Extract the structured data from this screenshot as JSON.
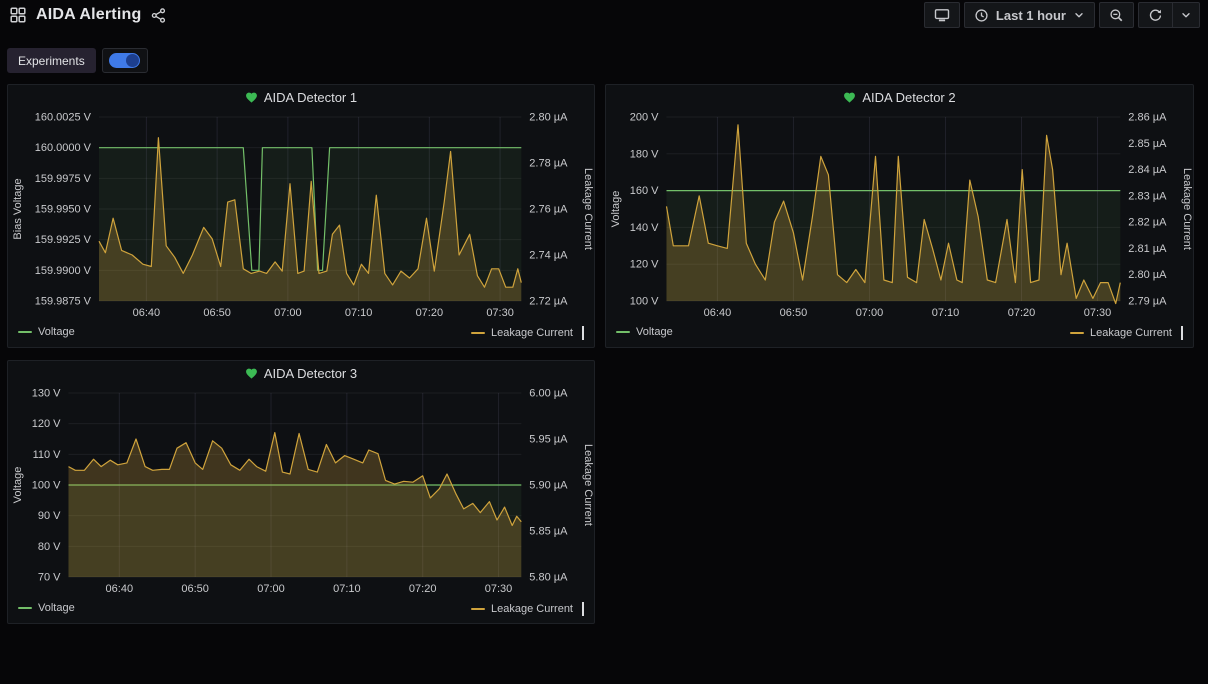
{
  "header": {
    "title": "AIDA Alerting",
    "time_range_label": "Last 1 hour"
  },
  "submenu": {
    "experiments_label": "Experiments",
    "experiments_toggle_on": true
  },
  "colors": {
    "voltage_green": "#73bf69",
    "current_yellow": "#cfa33c",
    "alert_ok_green": "#3cba54",
    "toggle_blue": "#3f7ae8",
    "axis_text": "#c9cacd",
    "grid_h": "rgba(201,209,217,0.08)",
    "grid_v": "rgba(168,158,212,0.12)"
  },
  "chart_data": [
    {
      "type": "line",
      "title": "AIDA Detector 1",
      "alert_state": "ok",
      "x_axis": {
        "min": 393.3,
        "max": 453,
        "ticks": [
          {
            "v": 400,
            "label": "06:40"
          },
          {
            "v": 410,
            "label": "06:50"
          },
          {
            "v": 420,
            "label": "07:00"
          },
          {
            "v": 430,
            "label": "07:10"
          },
          {
            "v": 440,
            "label": "07:20"
          },
          {
            "v": 450,
            "label": "07:30"
          }
        ]
      },
      "left_axis": {
        "label": "Bias Voltage",
        "min": 159.9875,
        "max": 160.0025,
        "ticks": [
          {
            "v": 160.0025,
            "label": "160.0025 V"
          },
          {
            "v": 160.0,
            "label": "160.0000 V"
          },
          {
            "v": 159.9975,
            "label": "159.9975 V"
          },
          {
            "v": 159.995,
            "label": "159.9950 V"
          },
          {
            "v": 159.9925,
            "label": "159.9925 V"
          },
          {
            "v": 159.99,
            "label": "159.9900 V"
          },
          {
            "v": 159.9875,
            "label": "159.9875 V"
          }
        ]
      },
      "right_axis": {
        "label": "Leakage Current",
        "min": 2.72,
        "max": 2.8,
        "ticks": [
          {
            "v": 2.8,
            "label": "2.80 µA"
          },
          {
            "v": 2.78,
            "label": "2.78 µA"
          },
          {
            "v": 2.76,
            "label": "2.76 µA"
          },
          {
            "v": 2.74,
            "label": "2.74 µA"
          },
          {
            "v": 2.72,
            "label": "2.72 µA"
          }
        ]
      },
      "series": [
        {
          "name": "Voltage",
          "axis": "left",
          "color": "#73bf69",
          "fill_opacity": 0.08,
          "points": [
            [
              393.3,
              160.0
            ],
            [
              413.7,
              160.0
            ],
            [
              414.9,
              159.99
            ],
            [
              415.9,
              159.99
            ],
            [
              416.4,
              160.0
            ],
            [
              423.4,
              160.0
            ],
            [
              424.2,
              159.99
            ],
            [
              424.9,
              159.99
            ],
            [
              425.9,
              160.0
            ],
            [
              453,
              160.0
            ]
          ]
        },
        {
          "name": "Leakage Current",
          "axis": "right",
          "color": "#cfa33c",
          "fill_opacity": 0.26,
          "points": [
            [
              393.3,
              2.746
            ],
            [
              394.2,
              2.741
            ],
            [
              395.3,
              2.756
            ],
            [
              396.5,
              2.742
            ],
            [
              398,
              2.74
            ],
            [
              399.5,
              2.736
            ],
            [
              400.7,
              2.735
            ],
            [
              401.7,
              2.791
            ],
            [
              402.8,
              2.744
            ],
            [
              404,
              2.739
            ],
            [
              405.2,
              2.732
            ],
            [
              406.5,
              2.74
            ],
            [
              408.1,
              2.752
            ],
            [
              409.3,
              2.747
            ],
            [
              410.5,
              2.735
            ],
            [
              411.5,
              2.763
            ],
            [
              412.5,
              2.764
            ],
            [
              413.7,
              2.734
            ],
            [
              414.8,
              2.732
            ],
            [
              416,
              2.733
            ],
            [
              417,
              2.732
            ],
            [
              418.2,
              2.737
            ],
            [
              419.2,
              2.733
            ],
            [
              420.3,
              2.771
            ],
            [
              421.4,
              2.732
            ],
            [
              422.3,
              2.733
            ],
            [
              423.3,
              2.772
            ],
            [
              424.4,
              2.732
            ],
            [
              425.5,
              2.733
            ],
            [
              426.3,
              2.749
            ],
            [
              427.3,
              2.753
            ],
            [
              428.3,
              2.732
            ],
            [
              429.3,
              2.727
            ],
            [
              430.4,
              2.736
            ],
            [
              431.4,
              2.732
            ],
            [
              432.5,
              2.766
            ],
            [
              433.7,
              2.732
            ],
            [
              434.8,
              2.727
            ],
            [
              436,
              2.733
            ],
            [
              437.2,
              2.73
            ],
            [
              438.4,
              2.734
            ],
            [
              439.6,
              2.756
            ],
            [
              440.7,
              2.733
            ],
            [
              442.1,
              2.763
            ],
            [
              443,
              2.785
            ],
            [
              444.2,
              2.74
            ],
            [
              445.7,
              2.749
            ],
            [
              446.8,
              2.731
            ],
            [
              447.8,
              2.726
            ],
            [
              448.8,
              2.734
            ],
            [
              449.8,
              2.734
            ],
            [
              450.8,
              2.726
            ],
            [
              451.8,
              2.726
            ],
            [
              452.5,
              2.734
            ],
            [
              453,
              2.728
            ]
          ]
        }
      ],
      "legend": [
        "Voltage",
        "Leakage Current"
      ]
    },
    {
      "type": "line",
      "title": "AIDA Detector 2",
      "alert_state": "ok",
      "x_axis": {
        "min": 393.3,
        "max": 453,
        "ticks": [
          {
            "v": 400,
            "label": "06:40"
          },
          {
            "v": 410,
            "label": "06:50"
          },
          {
            "v": 420,
            "label": "07:00"
          },
          {
            "v": 430,
            "label": "07:10"
          },
          {
            "v": 440,
            "label": "07:20"
          },
          {
            "v": 450,
            "label": "07:30"
          }
        ]
      },
      "left_axis": {
        "label": "Voltage",
        "min": 100,
        "max": 200,
        "ticks": [
          {
            "v": 200,
            "label": "200 V"
          },
          {
            "v": 180,
            "label": "180 V"
          },
          {
            "v": 160,
            "label": "160 V"
          },
          {
            "v": 140,
            "label": "140 V"
          },
          {
            "v": 120,
            "label": "120 V"
          },
          {
            "v": 100,
            "label": "100 V"
          }
        ]
      },
      "right_axis": {
        "label": "Leakage Current",
        "min": 2.79,
        "max": 2.86,
        "ticks": [
          {
            "v": 2.86,
            "label": "2.86 µA"
          },
          {
            "v": 2.85,
            "label": "2.85 µA"
          },
          {
            "v": 2.84,
            "label": "2.84 µA"
          },
          {
            "v": 2.83,
            "label": "2.83 µA"
          },
          {
            "v": 2.82,
            "label": "2.82 µA"
          },
          {
            "v": 2.81,
            "label": "2.81 µA"
          },
          {
            "v": 2.8,
            "label": "2.80 µA"
          },
          {
            "v": 2.79,
            "label": "2.79 µA"
          }
        ]
      },
      "series": [
        {
          "name": "Voltage",
          "axis": "left",
          "color": "#73bf69",
          "fill_opacity": 0.08,
          "points": [
            [
              393.3,
              160
            ],
            [
              453,
              160
            ]
          ]
        },
        {
          "name": "Leakage Current",
          "axis": "right",
          "color": "#cfa33c",
          "fill_opacity": 0.26,
          "points": [
            [
              393.3,
              2.826
            ],
            [
              394.2,
              2.811
            ],
            [
              395.2,
              2.811
            ],
            [
              396.2,
              2.811
            ],
            [
              397.6,
              2.83
            ],
            [
              398.8,
              2.812
            ],
            [
              400,
              2.811
            ],
            [
              401.3,
              2.81
            ],
            [
              402.7,
              2.857
            ],
            [
              403.8,
              2.812
            ],
            [
              405,
              2.804
            ],
            [
              406.3,
              2.798
            ],
            [
              407.5,
              2.82
            ],
            [
              408.7,
              2.828
            ],
            [
              410,
              2.816
            ],
            [
              411.2,
              2.798
            ],
            [
              412.5,
              2.822
            ],
            [
              413.6,
              2.845
            ],
            [
              414.6,
              2.838
            ],
            [
              415.8,
              2.8
            ],
            [
              417,
              2.797
            ],
            [
              418.2,
              2.802
            ],
            [
              419.4,
              2.797
            ],
            [
              420.8,
              2.845
            ],
            [
              421.9,
              2.798
            ],
            [
              423,
              2.797
            ],
            [
              423.8,
              2.845
            ],
            [
              425,
              2.799
            ],
            [
              426.2,
              2.797
            ],
            [
              427.2,
              2.821
            ],
            [
              428.3,
              2.81
            ],
            [
              429.4,
              2.798
            ],
            [
              430.4,
              2.812
            ],
            [
              431.5,
              2.798
            ],
            [
              432.2,
              2.797
            ],
            [
              433.2,
              2.836
            ],
            [
              434.3,
              2.822
            ],
            [
              435.5,
              2.798
            ],
            [
              436.6,
              2.797
            ],
            [
              438.1,
              2.821
            ],
            [
              439.2,
              2.797
            ],
            [
              440.1,
              2.84
            ],
            [
              441.2,
              2.797
            ],
            [
              442.3,
              2.798
            ],
            [
              443.3,
              2.853
            ],
            [
              444.1,
              2.84
            ],
            [
              445.2,
              2.8
            ],
            [
              446,
              2.812
            ],
            [
              447.2,
              2.791
            ],
            [
              448.2,
              2.798
            ],
            [
              449.4,
              2.791
            ],
            [
              450.4,
              2.797
            ],
            [
              451.4,
              2.797
            ],
            [
              452.4,
              2.789
            ],
            [
              453,
              2.797
            ]
          ]
        }
      ],
      "legend": [
        "Voltage",
        "Leakage Current"
      ]
    },
    {
      "type": "line",
      "title": "AIDA Detector 3",
      "alert_state": "ok",
      "x_axis": {
        "min": 393.3,
        "max": 453,
        "ticks": [
          {
            "v": 400,
            "label": "06:40"
          },
          {
            "v": 410,
            "label": "06:50"
          },
          {
            "v": 420,
            "label": "07:00"
          },
          {
            "v": 430,
            "label": "07:10"
          },
          {
            "v": 440,
            "label": "07:20"
          },
          {
            "v": 450,
            "label": "07:30"
          }
        ]
      },
      "left_axis": {
        "label": "Voltage",
        "min": 70,
        "max": 130,
        "ticks": [
          {
            "v": 130,
            "label": "130 V"
          },
          {
            "v": 120,
            "label": "120 V"
          },
          {
            "v": 110,
            "label": "110 V"
          },
          {
            "v": 100,
            "label": "100 V"
          },
          {
            "v": 90,
            "label": "90 V"
          },
          {
            "v": 80,
            "label": "80 V"
          },
          {
            "v": 70,
            "label": "70 V"
          }
        ]
      },
      "right_axis": {
        "label": "Leakage Current",
        "min": 5.8,
        "max": 6.0,
        "ticks": [
          {
            "v": 6.0,
            "label": "6.00 µA"
          },
          {
            "v": 5.95,
            "label": "5.95 µA"
          },
          {
            "v": 5.9,
            "label": "5.90 µA"
          },
          {
            "v": 5.85,
            "label": "5.85 µA"
          },
          {
            "v": 5.8,
            "label": "5.80 µA"
          }
        ]
      },
      "series": [
        {
          "name": "Voltage",
          "axis": "left",
          "color": "#73bf69",
          "fill_opacity": 0.08,
          "points": [
            [
              393.3,
              100
            ],
            [
              453,
              100
            ]
          ]
        },
        {
          "name": "Leakage Current",
          "axis": "right",
          "color": "#cfa33c",
          "fill_opacity": 0.26,
          "points": [
            [
              393.3,
              5.92
            ],
            [
              394.2,
              5.916
            ],
            [
              395.4,
              5.916
            ],
            [
              396.6,
              5.928
            ],
            [
              397.6,
              5.92
            ],
            [
              398.8,
              5.927
            ],
            [
              399.8,
              5.922
            ],
            [
              401,
              5.924
            ],
            [
              402.2,
              5.95
            ],
            [
              403.4,
              5.92
            ],
            [
              404.4,
              5.916
            ],
            [
              405.6,
              5.917
            ],
            [
              406.6,
              5.917
            ],
            [
              407.6,
              5.94
            ],
            [
              408.8,
              5.946
            ],
            [
              410,
              5.924
            ],
            [
              411,
              5.917
            ],
            [
              412.3,
              5.948
            ],
            [
              413.5,
              5.94
            ],
            [
              414.7,
              5.922
            ],
            [
              415.9,
              5.916
            ],
            [
              417.1,
              5.928
            ],
            [
              418.1,
              5.92
            ],
            [
              419.3,
              5.915
            ],
            [
              420.5,
              5.957
            ],
            [
              421.5,
              5.914
            ],
            [
              422.5,
              5.912
            ],
            [
              423.7,
              5.956
            ],
            [
              424.9,
              5.917
            ],
            [
              426.1,
              5.914
            ],
            [
              427.3,
              5.944
            ],
            [
              428.5,
              5.924
            ],
            [
              429.7,
              5.932
            ],
            [
              430.9,
              5.928
            ],
            [
              432.1,
              5.924
            ],
            [
              432.9,
              5.938
            ],
            [
              434.1,
              5.934
            ],
            [
              435.1,
              5.905
            ],
            [
              436.3,
              5.901
            ],
            [
              437.5,
              5.904
            ],
            [
              438.7,
              5.903
            ],
            [
              440,
              5.91
            ],
            [
              441,
              5.886
            ],
            [
              442.2,
              5.896
            ],
            [
              443.2,
              5.912
            ],
            [
              444.4,
              5.89
            ],
            [
              445.4,
              5.874
            ],
            [
              446.6,
              5.88
            ],
            [
              447.6,
              5.87
            ],
            [
              448.8,
              5.882
            ],
            [
              449.8,
              5.862
            ],
            [
              450.8,
              5.876
            ],
            [
              451.8,
              5.856
            ],
            [
              452.4,
              5.866
            ],
            [
              453,
              5.86
            ]
          ]
        }
      ],
      "legend": [
        "Voltage",
        "Leakage Current"
      ]
    }
  ]
}
